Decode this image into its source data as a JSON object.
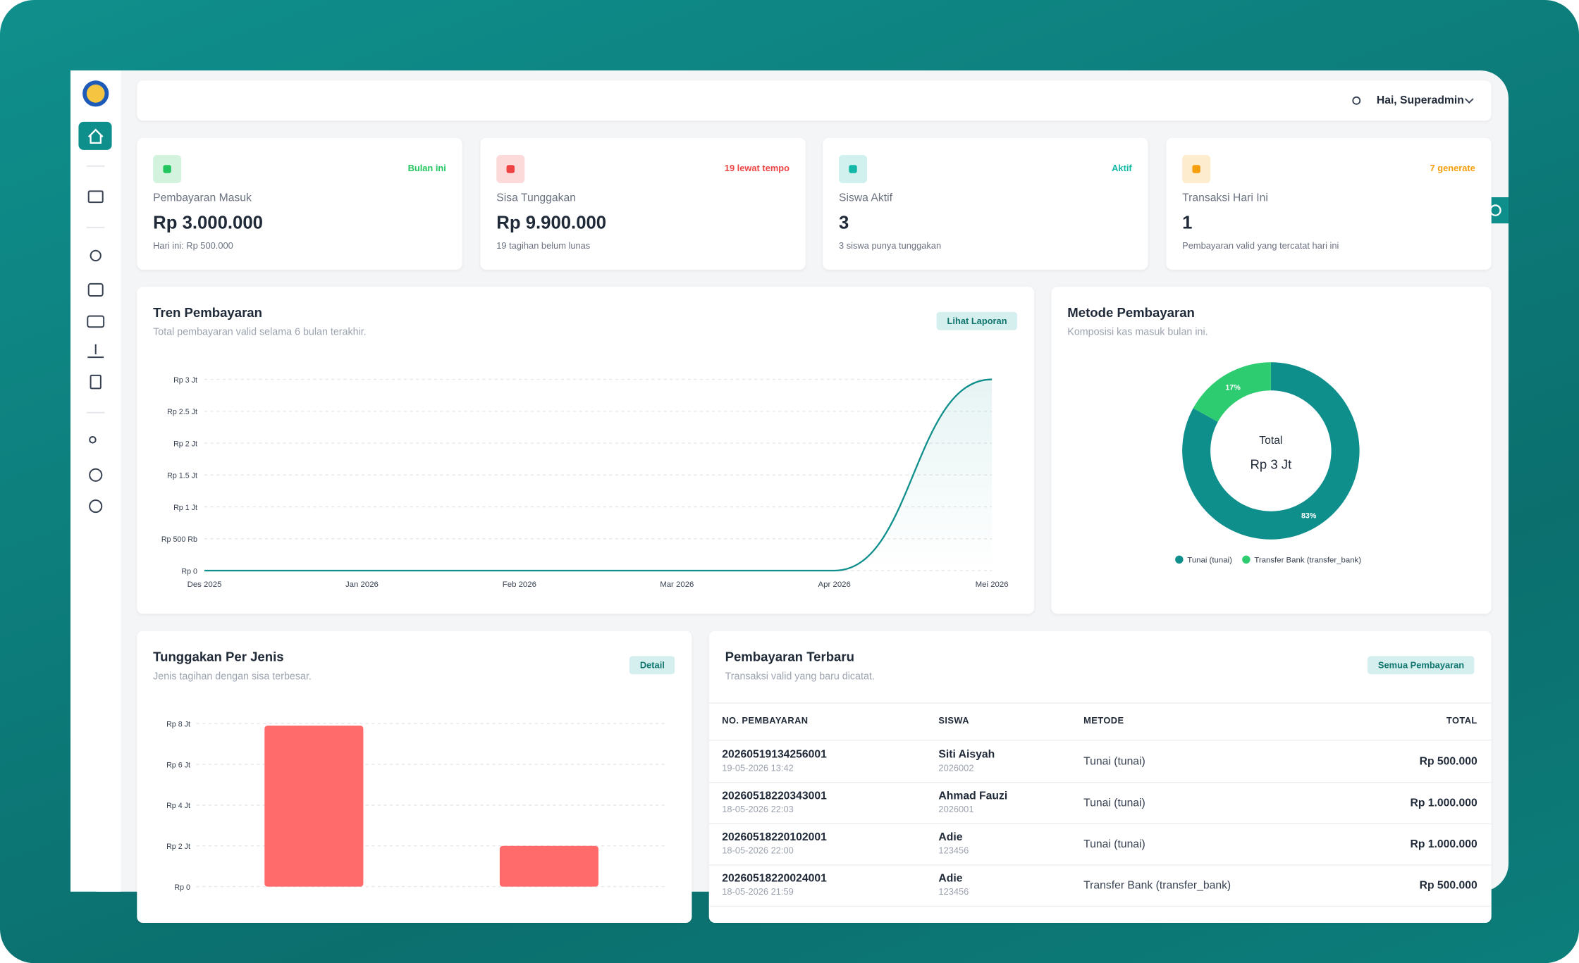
{
  "header": {
    "greeting": "Hai, Superadmin"
  },
  "stats": [
    {
      "label": "Pembayaran Masuk",
      "value": "Rp 3.000.000",
      "note": "Hari ini: Rp 500.000",
      "badge": "Bulan ini",
      "color": "#22c55e"
    },
    {
      "label": "Sisa Tunggakan",
      "value": "Rp 9.900.000",
      "note": "19 tagihan belum lunas",
      "badge": "19 lewat tempo",
      "color": "#ef4444"
    },
    {
      "label": "Siswa Aktif",
      "value": "3",
      "note": "3 siswa punya tunggakan",
      "badge": "Aktif",
      "color": "#14b8a6"
    },
    {
      "label": "Transaksi Hari Ini",
      "value": "1",
      "note": "Pembayaran valid yang tercatat hari ini",
      "badge": "7 generate",
      "color": "#f59e0b"
    }
  ],
  "chart_data": [
    {
      "type": "line",
      "title": "Tren Pembayaran",
      "subtitle": "Total pembayaran valid selama 6 bulan terakhir.",
      "action": "Lihat Laporan",
      "categories": [
        "Des 2025",
        "Jan 2026",
        "Feb 2026",
        "Mar 2026",
        "Apr 2026",
        "Mei 2026"
      ],
      "series": [
        {
          "name": "Pembayaran",
          "color": "#0f8f8c",
          "values": [
            0,
            0,
            0,
            0,
            0,
            3000000
          ]
        }
      ],
      "ylim": [
        0,
        3000000
      ],
      "yticks": [
        {
          "value": 0,
          "label": "Rp 0"
        },
        {
          "value": 500000,
          "label": "Rp 500 Rb"
        },
        {
          "value": 1000000,
          "label": "Rp 1 Jt"
        },
        {
          "value": 1500000,
          "label": "Rp 1.5 Jt"
        },
        {
          "value": 2000000,
          "label": "Rp 2 Jt"
        },
        {
          "value": 2500000,
          "label": "Rp 2.5 Jt"
        },
        {
          "value": 3000000,
          "label": "Rp 3 Jt"
        }
      ],
      "grid": true
    },
    {
      "type": "pie",
      "title": "Metode Pembayaran",
      "subtitle": "Komposisi kas masuk bulan ini.",
      "center_label": "Total",
      "center_value": "Rp 3 Jt",
      "categories": [
        "Tunai (tunai)",
        "Transfer Bank (transfer_bank)"
      ],
      "values": [
        83,
        17
      ],
      "value_labels": [
        "83%",
        "17%"
      ],
      "colors": [
        "#0f8f8c",
        "#2ecc71"
      ]
    },
    {
      "type": "bar",
      "title": "Tunggakan Per Jenis",
      "subtitle": "Jenis tagihan dengan sisa terbesar.",
      "action": "Detail",
      "categories": [
        null,
        null
      ],
      "values": [
        7900000,
        2000000
      ],
      "color": "#ff6b6b",
      "ylim": [
        0,
        8000000
      ],
      "yticks": [
        {
          "value": 0,
          "label": "Rp 0"
        },
        {
          "value": 2000000,
          "label": "Rp 2 Jt"
        },
        {
          "value": 4000000,
          "label": "Rp 4 Jt"
        },
        {
          "value": 6000000,
          "label": "Rp 6 Jt"
        },
        {
          "value": 8000000,
          "label": "Rp 8 Jt"
        }
      ],
      "grid": true
    }
  ],
  "table": {
    "title": "Pembayaran Terbaru",
    "subtitle": "Transaksi valid yang baru dicatat.",
    "action": "Semua Pembayaran",
    "headers": [
      "NO. PEMBAYARAN",
      "SISWA",
      "METODE",
      "TOTAL"
    ],
    "rows": [
      [
        "20260519134256001",
        "19-05-2026 13:42",
        "Siti Aisyah",
        "2026002",
        "Tunai (tunai)",
        "Rp 500.000"
      ],
      [
        "20260518220343001",
        "18-05-2026 22:03",
        "Ahmad Fauzi",
        "2026001",
        "Tunai (tunai)",
        "Rp 1.000.000"
      ],
      [
        "20260518220102001",
        "18-05-2026 22:00",
        "Adie",
        "123456",
        "Tunai (tunai)",
        "Rp 1.000.000"
      ],
      [
        "20260518220024001",
        "18-05-2026 21:59",
        "Adie",
        "123456",
        "Transfer Bank (transfer_bank)",
        "Rp 500.000"
      ]
    ]
  }
}
